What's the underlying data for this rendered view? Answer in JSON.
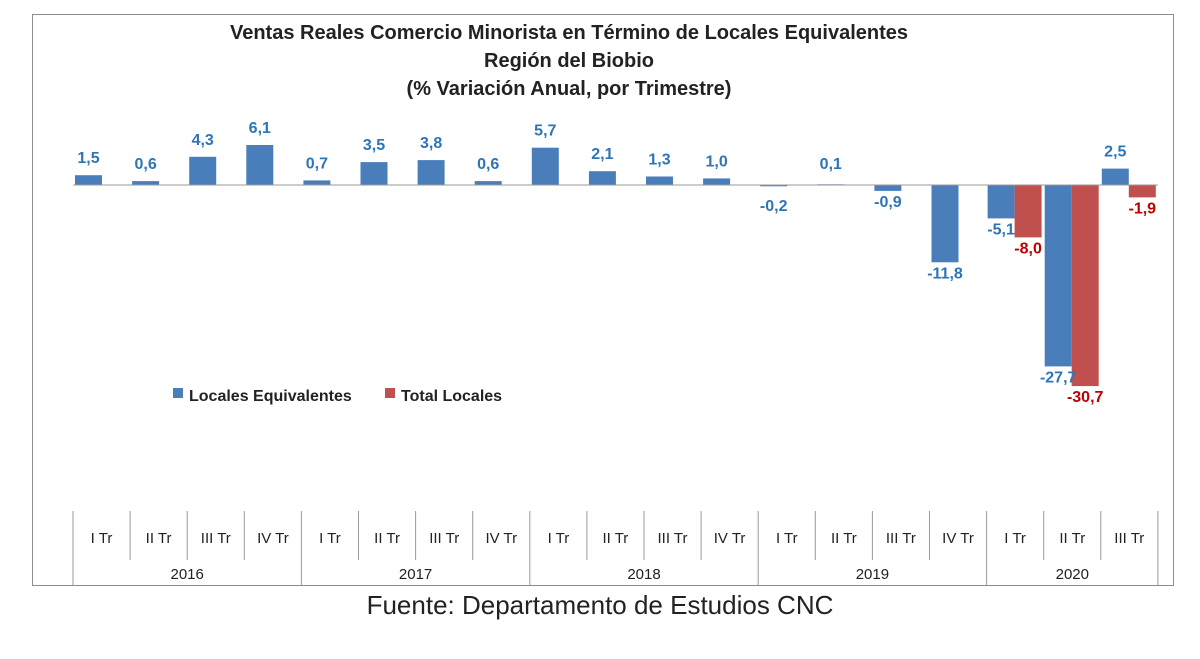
{
  "chart_data": {
    "type": "bar",
    "title_lines": [
      "Ventas Reales Comercio Minorista  en Término de Locales Equivalentes",
      "Región del Biobio",
      "(% Variación Anual, por Trimestre)"
    ],
    "categories": [
      "I Tr",
      "II Tr",
      "III Tr",
      "IV Tr",
      "I Tr",
      "II Tr",
      "III Tr",
      "IV Tr",
      "I Tr",
      "II Tr",
      "III Tr",
      "IV Tr",
      "I Tr",
      "II Tr",
      "III Tr",
      "IV Tr",
      "I Tr",
      "II Tr",
      "III Tr"
    ],
    "years": [
      {
        "label": "2016",
        "count": 4
      },
      {
        "label": "2017",
        "count": 4
      },
      {
        "label": "2018",
        "count": 4
      },
      {
        "label": "2019",
        "count": 4
      },
      {
        "label": "2020",
        "count": 3
      }
    ],
    "series": [
      {
        "name": "Locales Equivalentes",
        "color": "#4a7ebb",
        "label_color": "#2e75b6",
        "values": [
          1.5,
          0.6,
          4.3,
          6.1,
          0.7,
          3.5,
          3.8,
          0.6,
          5.7,
          2.1,
          1.3,
          1.0,
          -0.2,
          0.1,
          -0.9,
          -11.8,
          -5.1,
          -27.7,
          2.5
        ],
        "labels": [
          "1,5",
          "0,6",
          "4,3",
          "6,1",
          "0,7",
          "3,5",
          "3,8",
          "0,6",
          "5,7",
          "2,1",
          "1,3",
          "1,0",
          "-0,2",
          "0,1",
          "-0,9",
          "-11,8",
          "-5,1",
          "-27,7",
          "2,5"
        ]
      },
      {
        "name": "Total Locales",
        "color": "#c0504d",
        "label_color": "#c00000",
        "values": [
          null,
          null,
          null,
          null,
          null,
          null,
          null,
          null,
          null,
          null,
          null,
          null,
          null,
          null,
          null,
          null,
          -8.0,
          -30.7,
          -1.9
        ],
        "labels": [
          null,
          null,
          null,
          null,
          null,
          null,
          null,
          null,
          null,
          null,
          null,
          null,
          null,
          null,
          null,
          null,
          "-8,0",
          "-30,7",
          "-1,9"
        ]
      }
    ],
    "legend_position": "middle-left",
    "grid": false
  },
  "source": "Fuente: Departamento de Estudios CNC"
}
